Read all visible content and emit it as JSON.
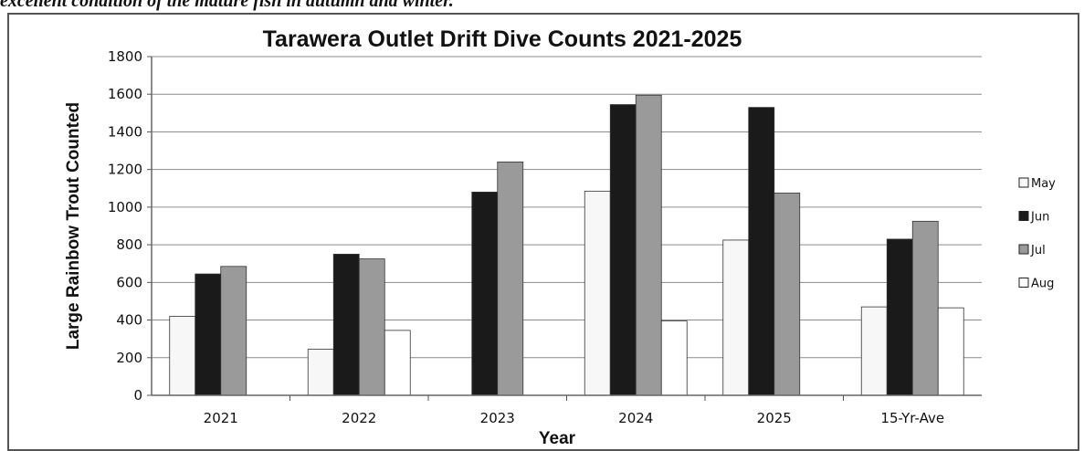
{
  "document": {
    "caption_fragment": "excellent condition of the mature fish in autumn and winter."
  },
  "colors": {
    "May": "#f7f7f7",
    "Jun": "#1a1a1a",
    "Jul": "#9a9a9a",
    "Aug": "#ffffff",
    "gridline": "#8c8c8c",
    "bar_outline": "#333333"
  },
  "chart_data": {
    "type": "bar",
    "title": "Tarawera Outlet Drift Dive Counts 2021-2025",
    "xlabel": "Year",
    "ylabel": "Large Rainbow Trout Counted",
    "categories": [
      "2021",
      "2022",
      "2023",
      "2024",
      "2025",
      "15-Yr-Ave"
    ],
    "series": [
      {
        "name": "May",
        "values": [
          420,
          245,
          0,
          1085,
          825,
          470
        ]
      },
      {
        "name": "Jun",
        "values": [
          645,
          750,
          1080,
          1545,
          1530,
          830
        ]
      },
      {
        "name": "Jul",
        "values": [
          685,
          725,
          1240,
          1595,
          1075,
          925
        ]
      },
      {
        "name": "Aug",
        "values": [
          0,
          345,
          0,
          395,
          0,
          465
        ]
      }
    ],
    "ylim": [
      0,
      1800
    ],
    "yticks": [
      0,
      200,
      400,
      600,
      800,
      1000,
      1200,
      1400,
      1600,
      1800
    ],
    "grid": true,
    "legend_position": "right"
  }
}
